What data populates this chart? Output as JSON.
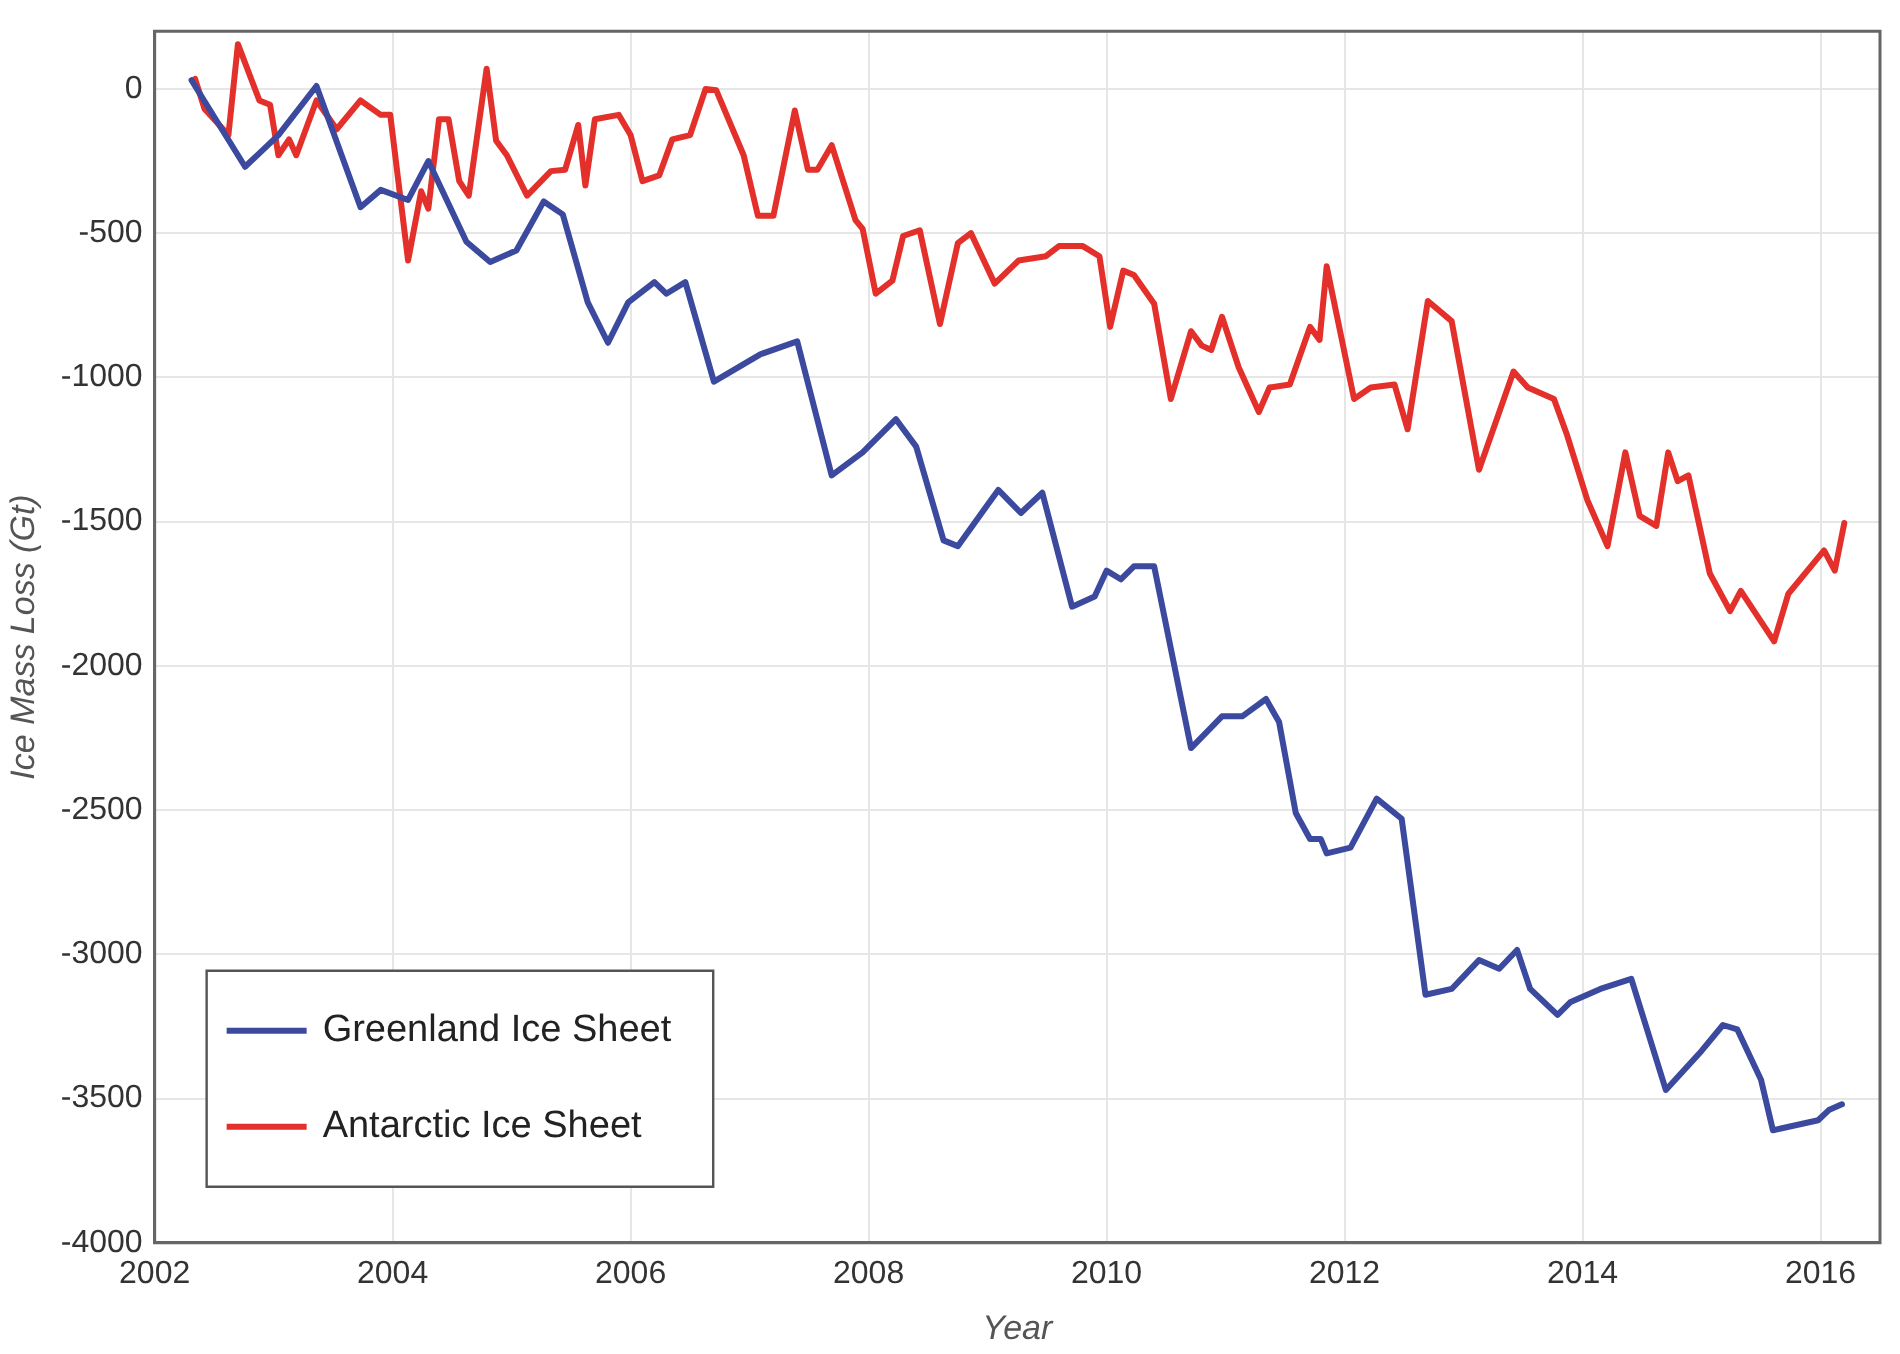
{
  "chart_data": {
    "type": "line",
    "xlabel": "Year",
    "ylabel": "Ice Mass Loss (Gt)",
    "xlim": [
      2002,
      2016.5
    ],
    "ylim": [
      -4000,
      200
    ],
    "xticks": [
      2002,
      2004,
      2006,
      2008,
      2010,
      2012,
      2014,
      2016
    ],
    "yticks": [
      -4000,
      -3500,
      -3000,
      -2500,
      -2000,
      -1500,
      -1000,
      -500,
      0
    ],
    "grid": true,
    "legend": "bottom left",
    "marker": "none",
    "line_style": "solid",
    "series": [
      {
        "name": "Greenland Ice Sheet",
        "color": "#3b4a9e",
        "x": [
          2002.31,
          2002.76,
          2003.04,
          2003.36,
          2003.73,
          2003.9,
          2004.13,
          2004.3,
          2004.62,
          2004.82,
          2005.04,
          2005.27,
          2005.43,
          2005.64,
          2005.81,
          2005.98,
          2006.2,
          2006.3,
          2006.46,
          2006.7,
          2007.09,
          2007.4,
          2007.69,
          2007.95,
          2008.23,
          2008.4,
          2008.63,
          2008.75,
          2009.09,
          2009.28,
          2009.46,
          2009.71,
          2009.9,
          2010.0,
          2010.12,
          2010.23,
          2010.4,
          2010.71,
          2010.97,
          2011.14,
          2011.34,
          2011.45,
          2011.59,
          2011.71,
          2011.8,
          2011.85,
          2012.05,
          2012.27,
          2012.48,
          2012.68,
          2012.9,
          2013.13,
          2013.3,
          2013.45,
          2013.56,
          2013.79,
          2013.9,
          2014.15,
          2014.41,
          2014.7,
          2015.0,
          2015.18,
          2015.3,
          2015.5,
          2015.6,
          2015.98,
          2016.07,
          2016.18
        ],
        "values": [
          30,
          -270,
          -160,
          10,
          -410,
          -350,
          -385,
          -250,
          -530,
          -600,
          -560,
          -390,
          -435,
          -740,
          -880,
          -740,
          -670,
          -710,
          -670,
          -1015,
          -920,
          -875,
          -1340,
          -1260,
          -1145,
          -1240,
          -1565,
          -1585,
          -1390,
          -1470,
          -1400,
          -1795,
          -1760,
          -1670,
          -1700,
          -1655,
          -1655,
          -2285,
          -2175,
          -2175,
          -2115,
          -2195,
          -2510,
          -2600,
          -2600,
          -2650,
          -2630,
          -2460,
          -2530,
          -3140,
          -3120,
          -3020,
          -3050,
          -2985,
          -3120,
          -3210,
          -3165,
          -3120,
          -3085,
          -3470,
          -3335,
          -3245,
          -3260,
          -3435,
          -3610,
          -3575,
          -3540,
          -3520
        ]
      },
      {
        "name": "Antarctic Ice Sheet",
        "color": "#e3302b",
        "x": [
          2002.34,
          2002.42,
          2002.62,
          2002.7,
          2002.88,
          2002.97,
          2003.04,
          2003.13,
          2003.19,
          2003.36,
          2003.53,
          2003.73,
          2003.9,
          2003.98,
          2004.13,
          2004.24,
          2004.3,
          2004.39,
          2004.47,
          2004.56,
          2004.64,
          2004.79,
          2004.87,
          2004.96,
          2005.13,
          2005.33,
          2005.45,
          2005.56,
          2005.62,
          2005.7,
          2005.9,
          2006.0,
          2006.1,
          2006.24,
          2006.35,
          2006.5,
          2006.63,
          2006.72,
          2006.95,
          2007.07,
          2007.2,
          2007.38,
          2007.49,
          2007.57,
          2007.69,
          2007.89,
          2007.95,
          2008.06,
          2008.2,
          2008.29,
          2008.43,
          2008.6,
          2008.75,
          2008.86,
          2009.06,
          2009.26,
          2009.49,
          2009.6,
          2009.8,
          2009.94,
          2010.03,
          2010.14,
          2010.23,
          2010.4,
          2010.54,
          2010.71,
          2010.8,
          2010.88,
          2010.97,
          2011.11,
          2011.28,
          2011.37,
          2011.54,
          2011.71,
          2011.79,
          2011.85,
          2012.08,
          2012.22,
          2012.42,
          2012.53,
          2012.7,
          2012.9,
          2013.13,
          2013.42,
          2013.54,
          2013.76,
          2013.87,
          2014.04,
          2014.21,
          2014.36,
          2014.48,
          2014.62,
          2014.72,
          2014.8,
          2014.89,
          2015.07,
          2015.24,
          2015.33,
          2015.61,
          2015.73,
          2016.03,
          2016.12,
          2016.2
        ],
        "values": [
          35,
          -70,
          -160,
          155,
          -40,
          -55,
          -230,
          -175,
          -230,
          -40,
          -140,
          -40,
          -90,
          -90,
          -595,
          -355,
          -415,
          -105,
          -105,
          -320,
          -370,
          70,
          -180,
          -230,
          -370,
          -285,
          -280,
          -125,
          -335,
          -105,
          -90,
          -160,
          -320,
          -300,
          -175,
          -160,
          0,
          -5,
          -230,
          -440,
          -440,
          -75,
          -280,
          -280,
          -195,
          -455,
          -485,
          -710,
          -665,
          -510,
          -490,
          -815,
          -535,
          -500,
          -675,
          -595,
          -580,
          -545,
          -545,
          -580,
          -825,
          -630,
          -645,
          -745,
          -1075,
          -840,
          -890,
          -905,
          -790,
          -965,
          -1120,
          -1035,
          -1025,
          -825,
          -870,
          -615,
          -1075,
          -1035,
          -1025,
          -1180,
          -735,
          -805,
          -1320,
          -980,
          -1035,
          -1075,
          -1200,
          -1425,
          -1585,
          -1260,
          -1480,
          -1515,
          -1260,
          -1360,
          -1340,
          -1680,
          -1810,
          -1740,
          -1915,
          -1750,
          -1600,
          -1670,
          -1505
        ]
      }
    ]
  }
}
